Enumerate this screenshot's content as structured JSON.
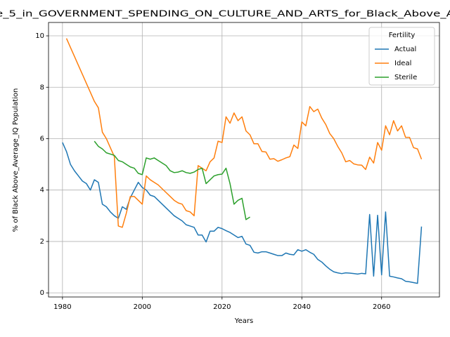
{
  "chart_data": {
    "type": "line",
    "title": "e_5_in_GOVERNMENT_SPENDING_ON_CULTURE_AND_ARTS_for_Black_Above_A",
    "xlabel": "Years",
    "ylabel": "% of Black Above_Average_IQ Population",
    "legend_title": "Fertility",
    "legend": "upper right",
    "grid": true,
    "xlim": [
      1976.5,
      2074.5
    ],
    "xticks": [
      1980,
      2000,
      2020,
      2040,
      2060
    ],
    "ylim": [
      -0.16,
      10.52
    ],
    "yticks": [
      0,
      2,
      4,
      6,
      8,
      10
    ],
    "x": [
      1980,
      1981,
      1982,
      1983,
      1984,
      1985,
      1986,
      1987,
      1988,
      1989,
      1990,
      1991,
      1992,
      1993,
      1994,
      1995,
      1996,
      1997,
      1998,
      1999,
      2000,
      2001,
      2002,
      2003,
      2004,
      2005,
      2006,
      2007,
      2008,
      2009,
      2010,
      2011,
      2012,
      2013,
      2014,
      2015,
      2016,
      2017,
      2018,
      2019,
      2020,
      2021,
      2022,
      2023,
      2024,
      2025,
      2026,
      2027,
      2028,
      2029,
      2030,
      2031,
      2032,
      2033,
      2034,
      2035,
      2036,
      2037,
      2038,
      2039,
      2040,
      2041,
      2042,
      2043,
      2044,
      2045,
      2046,
      2047,
      2048,
      2049,
      2050,
      2051,
      2052,
      2053,
      2054,
      2055,
      2056,
      2057,
      2058,
      2059,
      2060,
      2061,
      2062,
      2063,
      2064,
      2065,
      2066,
      2067,
      2068,
      2069,
      2070
    ],
    "series": [
      {
        "name": "Actual",
        "color": "#1f77b4",
        "values": [
          5.85,
          5.5,
          5.0,
          4.75,
          4.55,
          4.35,
          4.25,
          4.0,
          4.4,
          4.3,
          3.45,
          3.35,
          3.15,
          3.0,
          2.9,
          3.35,
          3.25,
          3.7,
          4.0,
          4.3,
          4.1,
          4.0,
          3.8,
          3.75,
          3.6,
          3.45,
          3.3,
          3.15,
          3.0,
          2.9,
          2.8,
          2.65,
          2.6,
          2.55,
          2.25,
          2.25,
          1.98,
          2.4,
          2.4,
          2.55,
          2.5,
          2.42,
          2.35,
          2.25,
          2.15,
          2.2,
          1.9,
          1.85,
          1.58,
          1.55,
          1.6,
          1.6,
          1.55,
          1.5,
          1.45,
          1.45,
          1.55,
          1.5,
          1.48,
          1.68,
          1.62,
          1.68,
          1.58,
          1.5,
          1.3,
          1.2,
          1.05,
          0.92,
          0.82,
          0.78,
          0.75,
          0.78,
          0.77,
          0.75,
          0.73,
          0.76,
          0.74,
          3.05,
          0.65,
          3.02,
          0.7,
          3.15,
          0.65,
          0.62,
          0.58,
          0.55,
          0.45,
          0.43,
          0.4,
          0.37,
          2.58
        ]
      },
      {
        "name": "Ideal",
        "color": "#ff7f0e",
        "values": [
          null,
          9.9,
          9.55,
          9.2,
          8.85,
          8.5,
          8.15,
          7.8,
          7.45,
          7.2,
          6.25,
          6.0,
          5.65,
          5.3,
          2.6,
          2.55,
          3.1,
          3.75,
          3.75,
          3.6,
          3.45,
          4.55,
          4.4,
          4.3,
          4.2,
          4.05,
          3.9,
          3.75,
          3.6,
          3.5,
          3.45,
          3.2,
          3.15,
          3.0,
          4.95,
          4.85,
          4.75,
          5.1,
          5.25,
          5.9,
          5.85,
          6.85,
          6.6,
          7.0,
          6.7,
          6.85,
          6.3,
          6.15,
          5.8,
          5.8,
          5.5,
          5.48,
          5.2,
          5.22,
          5.12,
          5.18,
          5.25,
          5.3,
          5.75,
          5.62,
          6.65,
          6.5,
          7.25,
          7.05,
          7.15,
          6.8,
          6.55,
          6.2,
          6.0,
          5.7,
          5.45,
          5.1,
          5.15,
          5.02,
          4.98,
          4.97,
          4.8,
          5.28,
          5.05,
          5.85,
          5.55,
          6.5,
          6.15,
          6.7,
          6.3,
          6.5,
          6.05,
          6.05,
          5.65,
          5.6,
          5.2
        ]
      },
      {
        "name": "Sterile",
        "color": "#2ca02c",
        "values": [
          null,
          null,
          null,
          null,
          null,
          null,
          null,
          null,
          5.9,
          5.7,
          5.6,
          5.45,
          5.4,
          5.35,
          5.15,
          5.1,
          5.0,
          4.9,
          4.85,
          4.65,
          4.6,
          5.25,
          5.2,
          5.25,
          5.15,
          5.05,
          4.95,
          4.75,
          4.68,
          4.7,
          4.75,
          4.68,
          4.65,
          4.7,
          4.8,
          4.85,
          4.25,
          4.4,
          4.55,
          4.6,
          4.62,
          4.85,
          4.25,
          3.45,
          3.6,
          3.68,
          2.85,
          2.95,
          null,
          null,
          null,
          null,
          null,
          null,
          null,
          null,
          null,
          null,
          null,
          null,
          null,
          null,
          null,
          null,
          null,
          null,
          null,
          null,
          null,
          null,
          null,
          null,
          null,
          null,
          null,
          null,
          null,
          null,
          null,
          null,
          null,
          null,
          null,
          null,
          null,
          null,
          null,
          null,
          null,
          null,
          null
        ]
      }
    ]
  }
}
